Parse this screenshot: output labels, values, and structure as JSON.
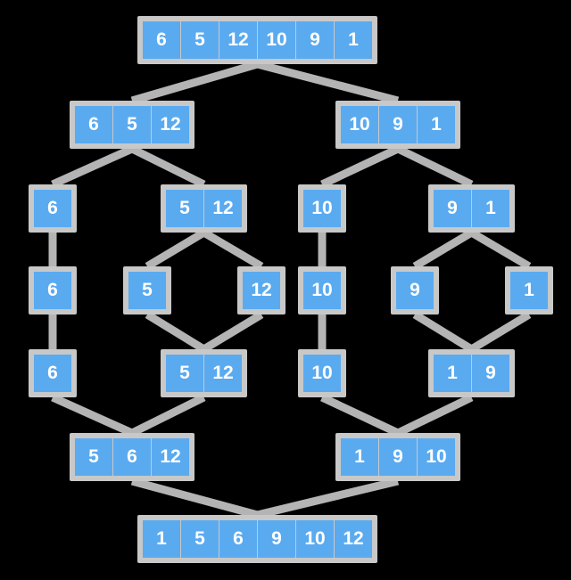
{
  "colors": {
    "cell": "#5aaaf0",
    "frame": "#c8c8c8",
    "edge": "#b4b4b4",
    "text": "#ffffff",
    "background": "#000000"
  },
  "nodes": [
    {
      "id": "root",
      "values": [
        6,
        5,
        12,
        10,
        9,
        1
      ]
    },
    {
      "id": "split-left",
      "values": [
        6,
        5,
        12
      ]
    },
    {
      "id": "split-right",
      "values": [
        10,
        9,
        1
      ]
    },
    {
      "id": "split-6",
      "values": [
        6
      ]
    },
    {
      "id": "split-5-12",
      "values": [
        5,
        12
      ]
    },
    {
      "id": "split-10",
      "values": [
        10
      ]
    },
    {
      "id": "split-9-1",
      "values": [
        9,
        1
      ]
    },
    {
      "id": "leaf-6",
      "values": [
        6
      ]
    },
    {
      "id": "leaf-5",
      "values": [
        5
      ]
    },
    {
      "id": "leaf-12",
      "values": [
        12
      ]
    },
    {
      "id": "leaf-10",
      "values": [
        10
      ]
    },
    {
      "id": "leaf-9",
      "values": [
        9
      ]
    },
    {
      "id": "leaf-1",
      "values": [
        1
      ]
    },
    {
      "id": "merge-6",
      "values": [
        6
      ]
    },
    {
      "id": "merge-5-12",
      "values": [
        5,
        12
      ]
    },
    {
      "id": "merge-10",
      "values": [
        10
      ]
    },
    {
      "id": "merge-1-9",
      "values": [
        1,
        9
      ]
    },
    {
      "id": "merge-5-6-12",
      "values": [
        5,
        6,
        12
      ]
    },
    {
      "id": "merge-1-9-10",
      "values": [
        1,
        9,
        10
      ]
    },
    {
      "id": "sorted",
      "values": [
        1,
        5,
        6,
        9,
        10,
        12
      ]
    }
  ],
  "edges": [
    [
      "root",
      "split-left"
    ],
    [
      "root",
      "split-right"
    ],
    [
      "split-left",
      "split-6"
    ],
    [
      "split-left",
      "split-5-12"
    ],
    [
      "split-right",
      "split-10"
    ],
    [
      "split-right",
      "split-9-1"
    ],
    [
      "split-6",
      "leaf-6"
    ],
    [
      "split-5-12",
      "leaf-5"
    ],
    [
      "split-5-12",
      "leaf-12"
    ],
    [
      "split-10",
      "leaf-10"
    ],
    [
      "split-9-1",
      "leaf-9"
    ],
    [
      "split-9-1",
      "leaf-1"
    ],
    [
      "leaf-6",
      "merge-6"
    ],
    [
      "leaf-5",
      "merge-5-12"
    ],
    [
      "leaf-12",
      "merge-5-12"
    ],
    [
      "leaf-10",
      "merge-10"
    ],
    [
      "leaf-9",
      "merge-1-9"
    ],
    [
      "leaf-1",
      "merge-1-9"
    ],
    [
      "merge-6",
      "merge-5-6-12"
    ],
    [
      "merge-5-12",
      "merge-5-6-12"
    ],
    [
      "merge-10",
      "merge-1-9-10"
    ],
    [
      "merge-1-9",
      "merge-1-9-10"
    ],
    [
      "merge-5-6-12",
      "sorted"
    ],
    [
      "merge-1-9-10",
      "sorted"
    ]
  ]
}
